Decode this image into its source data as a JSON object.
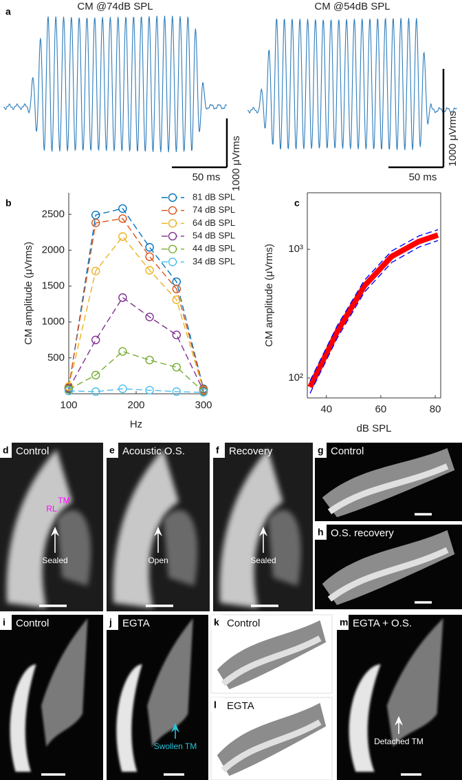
{
  "panel_a": {
    "letter": "a",
    "traces": [
      {
        "title": "CM @74dB SPL",
        "time_scale": "50 ms",
        "amp_scale": "1000 μVrms"
      },
      {
        "title": "CM @54dB SPL",
        "time_scale": "50 ms",
        "amp_scale": "1000 μVrms"
      }
    ]
  },
  "chart_data": [
    {
      "type": "line",
      "panel": "b",
      "xlabel": "Hz",
      "ylabel": "CM amplitude (μVrms)",
      "x": [
        100,
        140,
        180,
        220,
        260,
        300
      ],
      "xlim": [
        100,
        300
      ],
      "xticks": [
        100,
        200,
        300
      ],
      "ylim": [
        0,
        2800
      ],
      "yticks": [
        500,
        1000,
        1500,
        2000,
        2500
      ],
      "line_style": "dashed",
      "marker": "circle",
      "legend": "upper right",
      "series": [
        {
          "name": "81 dB SPL",
          "color": "#0072bd",
          "values": [
            80,
            2490,
            2580,
            2040,
            1560,
            70
          ]
        },
        {
          "name": "74 dB SPL",
          "color": "#d95319",
          "values": [
            90,
            2380,
            2440,
            1910,
            1460,
            60
          ]
        },
        {
          "name": "64 dB SPL",
          "color": "#edb120",
          "values": [
            100,
            1710,
            2190,
            1720,
            1310,
            50
          ]
        },
        {
          "name": "54 dB SPL",
          "color": "#7e2f8e",
          "values": [
            70,
            750,
            1340,
            1070,
            820,
            40
          ]
        },
        {
          "name": "44 dB SPL",
          "color": "#77ac30",
          "values": [
            60,
            260,
            590,
            470,
            370,
            30
          ]
        },
        {
          "name": "34 dB SPL",
          "color": "#4dbeee",
          "values": [
            40,
            30,
            70,
            50,
            30,
            20
          ]
        }
      ]
    },
    {
      "type": "line",
      "panel": "c",
      "xlabel": "dB SPL",
      "ylabel": "CM amplitude (μVrms)",
      "x": [
        34,
        44,
        54,
        64,
        74,
        81
      ],
      "xlim": [
        33,
        82
      ],
      "xticks": [
        40,
        60,
        80
      ],
      "ylim": [
        70,
        2750
      ],
      "log_y": true,
      "yticks": [
        {
          "value": 100,
          "label": "10²"
        },
        {
          "value": 1000,
          "label": "10³"
        }
      ],
      "series": [
        {
          "color": "#ff0000",
          "style": "solid",
          "values": [
            85,
            230,
            520,
            880,
            1150,
            1290
          ]
        },
        {
          "color": "#0000ff",
          "style": "dashed",
          "values": [
            95,
            255,
            575,
            970,
            1270,
            1420
          ]
        },
        {
          "color": "#0000ff",
          "style": "dashed",
          "values": [
            76,
            205,
            465,
            790,
            1040,
            1170
          ]
        }
      ]
    }
  ],
  "images": [
    {
      "letter": "d",
      "title": "Control",
      "annotations": [
        "TM",
        "RL",
        "Sealed"
      ]
    },
    {
      "letter": "e",
      "title": "Acoustic O.S.",
      "annotations": [
        "Open"
      ]
    },
    {
      "letter": "f",
      "title": "Recovery",
      "annotations": [
        "Sealed"
      ]
    },
    {
      "letter": "g",
      "title": "Control",
      "annotations": []
    },
    {
      "letter": "h",
      "title": "O.S. recovery",
      "annotations": []
    },
    {
      "letter": "i",
      "title": "Control",
      "annotations": []
    },
    {
      "letter": "j",
      "title": "EGTA",
      "annotations": [
        "Swollen TM"
      ]
    },
    {
      "letter": "k",
      "title": "Control",
      "annotations": []
    },
    {
      "letter": "l",
      "title": "EGTA",
      "annotations": []
    },
    {
      "letter": "m",
      "title": "EGTA + O.S.",
      "annotations": [
        "Detached TM"
      ]
    }
  ]
}
